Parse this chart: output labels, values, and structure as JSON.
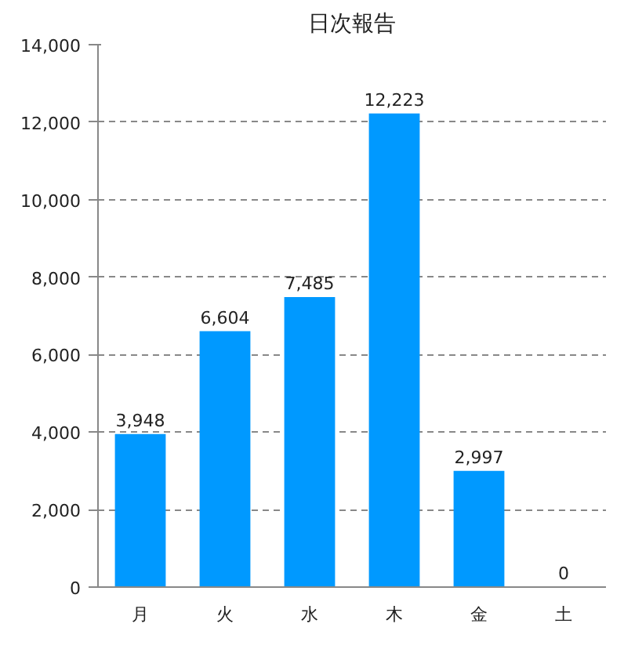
{
  "chart_data": {
    "type": "bar",
    "title": "日次報告",
    "categories": [
      "月",
      "火",
      "水",
      "木",
      "金",
      "土"
    ],
    "values": [
      3948,
      6604,
      7485,
      12223,
      2997,
      0
    ],
    "color": "#0099ff",
    "ylim": [
      0,
      14000
    ],
    "yticks": [
      {
        "value": 0,
        "label": "0"
      },
      {
        "value": 2000,
        "label": "2,000"
      },
      {
        "value": 4000,
        "label": "4,000"
      },
      {
        "value": 6000,
        "label": "6,000"
      },
      {
        "value": 8000,
        "label": "8,000"
      },
      {
        "value": 10000,
        "label": "10,000"
      },
      {
        "value": 12000,
        "label": "12,000"
      },
      {
        "value": 14000,
        "label": "14,000"
      }
    ],
    "grid": "y",
    "value_labels": [
      "3,948",
      "6,604",
      "7,485",
      "12,223",
      "2,997",
      "0"
    ]
  }
}
